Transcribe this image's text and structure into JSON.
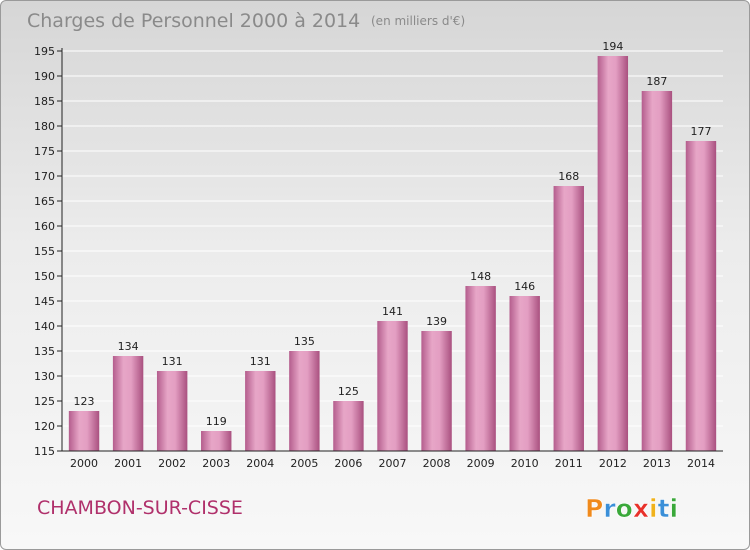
{
  "chart_data": {
    "type": "bar",
    "title": "Charges de Personnel 2000 à 2014",
    "subtitle": "(en milliers d'€)",
    "categories": [
      "2000",
      "2001",
      "2002",
      "2003",
      "2004",
      "2005",
      "2006",
      "2007",
      "2008",
      "2009",
      "2010",
      "2011",
      "2012",
      "2013",
      "2014"
    ],
    "values": [
      123,
      134,
      131,
      119,
      131,
      135,
      125,
      141,
      139,
      148,
      146,
      168,
      194,
      187,
      177
    ],
    "ylim": [
      115,
      195
    ],
    "yticks": [
      115,
      120,
      125,
      130,
      135,
      140,
      145,
      150,
      155,
      160,
      165,
      170,
      175,
      180,
      185,
      190,
      195
    ],
    "xlabel": "",
    "ylabel": "",
    "grid": true,
    "bar_color": "#d98bb4"
  },
  "footer": {
    "town": "CHAMBON-SUR-CISSE",
    "brand": "Proxiti"
  },
  "colors": {
    "brand_p": "#f08a1c",
    "brand_r": "#3a8fd8",
    "brand_o": "#3aa83a",
    "brand_x": "#e8312a",
    "brand_i": "#f0b21c",
    "brand_t": "#3a8fd8",
    "brand_i2": "#3aa83a"
  }
}
